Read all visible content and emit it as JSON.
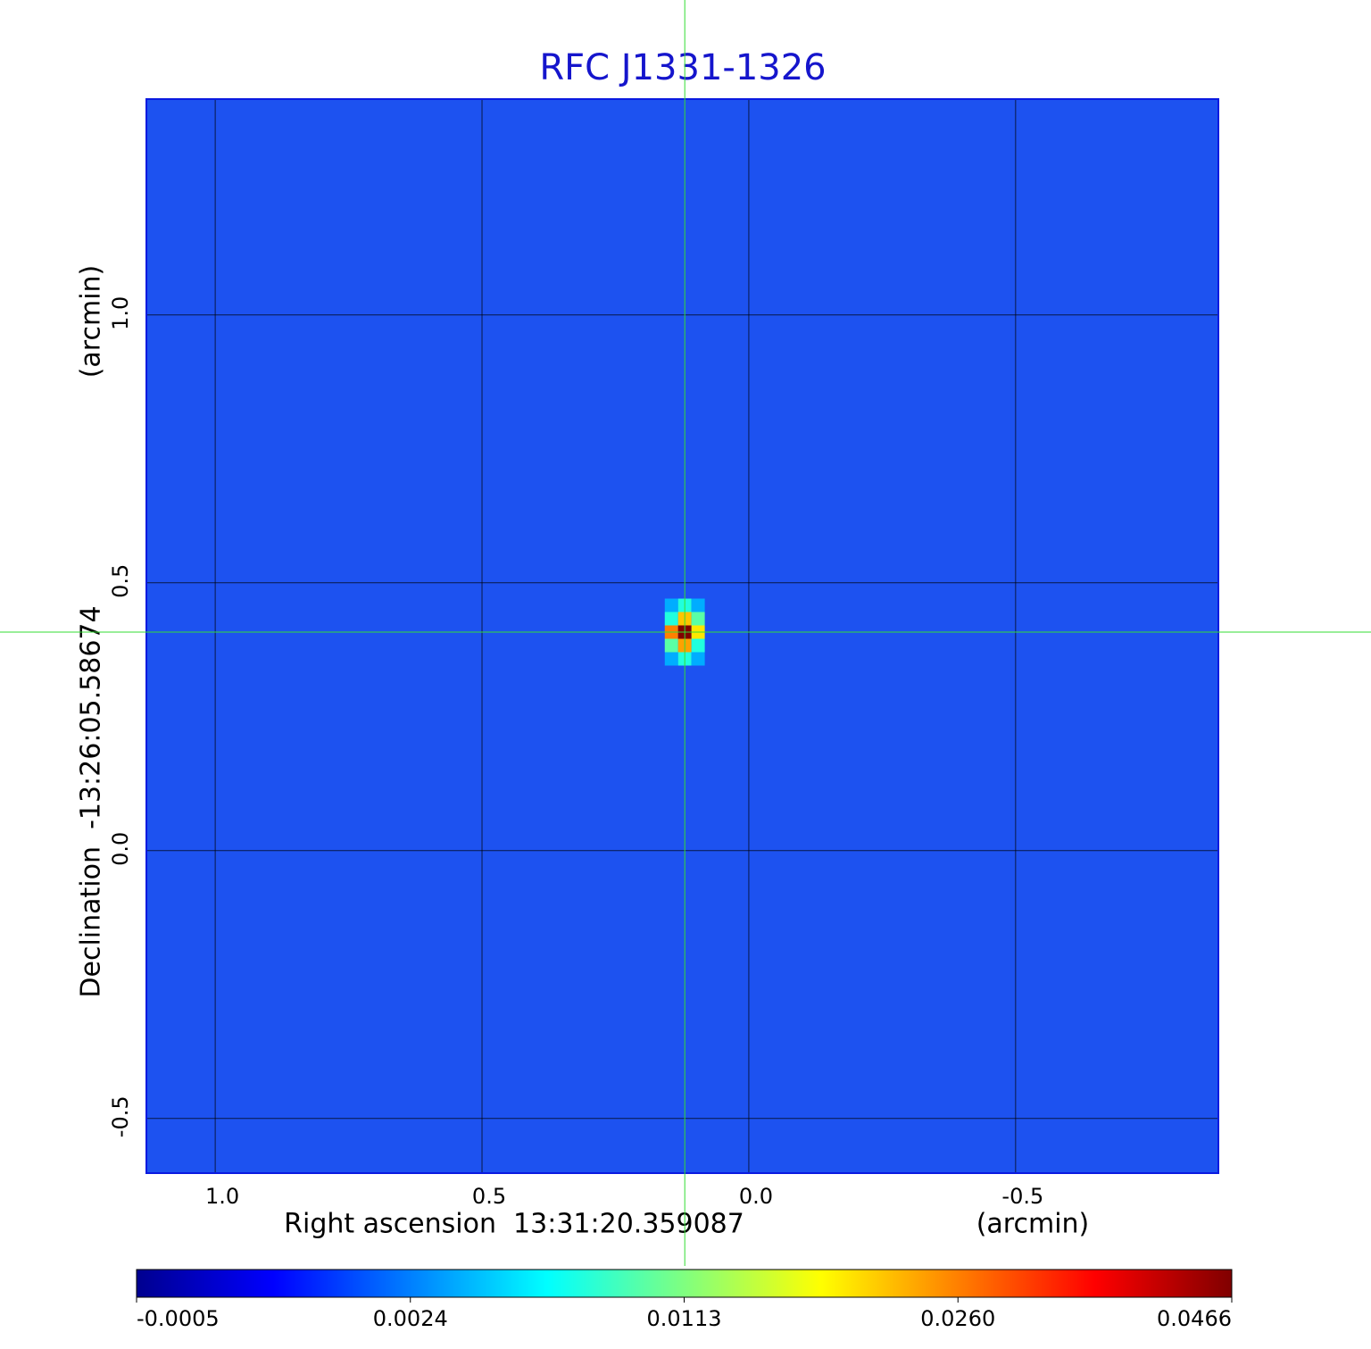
{
  "chart_data": {
    "type": "image",
    "title": "RFC J1331-1326",
    "x_label": "Right ascension  13:31:20.359087",
    "x_unit": "(arcmin)",
    "y_label": "Declination  -13:26:05.58674",
    "y_unit": "(arcmin)",
    "xlim": [
      1.129,
      -0.88
    ],
    "ylim": [
      -0.602,
      1.403
    ],
    "xticks": [
      {
        "value": 1,
        "label": "1.0"
      },
      0.5,
      {
        "value": 0,
        "label": "0.0"
      },
      -0.5
    ],
    "yticks": [
      -0.5,
      {
        "value": 0,
        "label": "0.0"
      },
      0.5,
      {
        "value": 1,
        "label": "1.0"
      }
    ],
    "grid": true,
    "crosshair": {
      "x": 0.12,
      "y": 0.408,
      "color": "#33dd33"
    },
    "pixels": {
      "x": [
        0.145,
        0.12,
        0.095,
        0.145,
        0.12,
        0.095,
        0.145,
        0.12,
        0.095,
        0.145,
        0.12,
        0.095,
        0.145,
        0.12,
        0.095
      ],
      "y": [
        0.458,
        0.458,
        0.458,
        0.433,
        0.433,
        0.433,
        0.408,
        0.408,
        0.408,
        0.383,
        0.383,
        0.383,
        0.358,
        0.358,
        0.358
      ],
      "values": [
        0.004,
        0.008,
        0.004,
        0.008,
        0.022,
        0.01,
        0.026,
        0.0466,
        0.02,
        0.01,
        0.024,
        0.008,
        0.004,
        0.008,
        0.004
      ]
    },
    "colorbar_ticks": [
      -0.0005,
      0.0024,
      0.0113,
      {
        "value": 0.026,
        "label": "0.0260"
      },
      0.0466
    ]
  }
}
